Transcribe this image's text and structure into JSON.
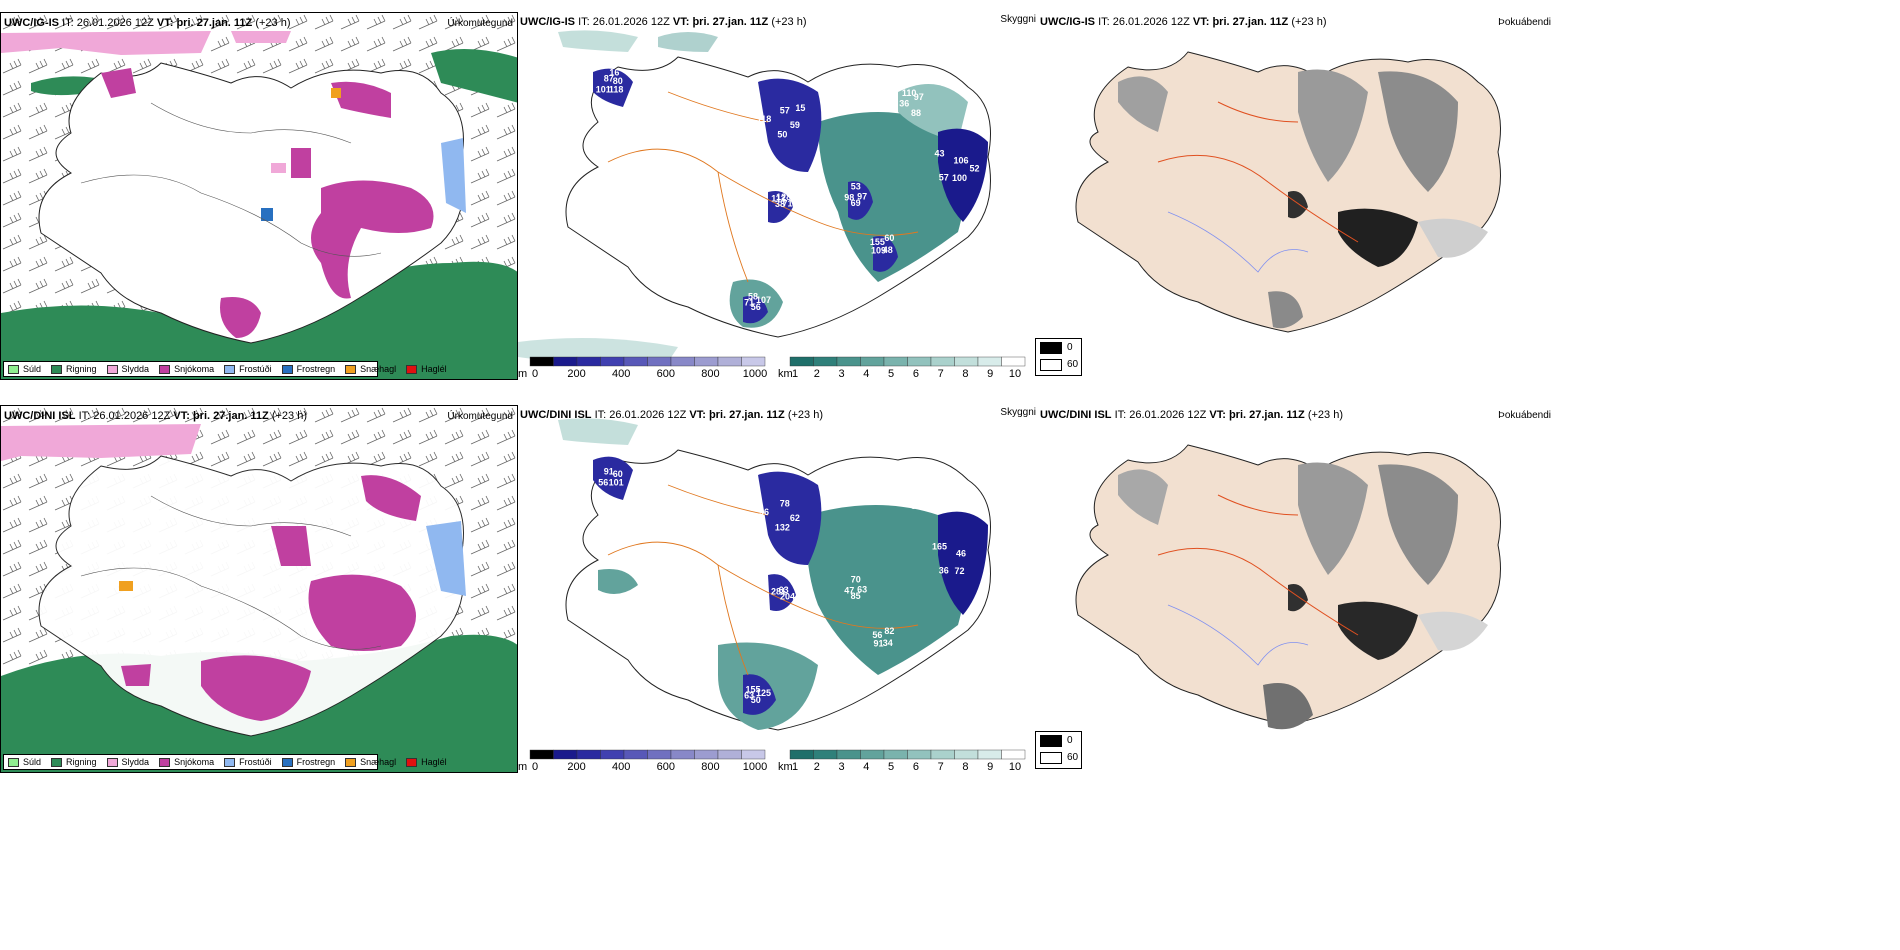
{
  "rows": [
    {
      "model": "UWC/IG-IS",
      "init_label": "IT:",
      "init_time": "26.01.2026 12Z",
      "valid_label": "VT:",
      "valid_time": "þri. 27.jan. 11Z",
      "lead": "(+23 h)",
      "panel_titles": {
        "precip": "Úrkomutegund",
        "vis": "Skyggni",
        "fog": "Þokuábendi"
      }
    },
    {
      "model": "UWC/DINI ISL",
      "init_label": "IT:",
      "init_time": "26.01.2026 12Z",
      "valid_label": "VT:",
      "valid_time": "þri. 27.jan. 11Z",
      "lead": "(+23 h)",
      "panel_titles": {
        "precip": "Úrkomutegund",
        "vis": "Skyggni",
        "fog": "Þokuábendi"
      }
    }
  ],
  "precip_legend": [
    {
      "label": "Súld",
      "color": "#90ee90"
    },
    {
      "label": "Rigning",
      "color": "#2e8b57"
    },
    {
      "label": "Slydda",
      "color": "#f0a8d8"
    },
    {
      "label": "Snjókoma",
      "color": "#c040a0"
    },
    {
      "label": "Frostúði",
      "color": "#90b8f0"
    },
    {
      "label": "Frostregn",
      "color": "#2870c0"
    },
    {
      "label": "Snæhagl",
      "color": "#f0a020"
    },
    {
      "label": "Haglél",
      "color": "#e01010"
    }
  ],
  "cloud_base_bar": {
    "unit": "m",
    "ticks": [
      "0",
      "200",
      "400",
      "600",
      "800",
      "1000"
    ],
    "colors": [
      "#000000",
      "#1a1a8c",
      "#2a2aa0",
      "#4040b0",
      "#5858b8",
      "#7070c0",
      "#8888c8",
      "#9c9cd0",
      "#b0b0d8",
      "#c8c8e8"
    ]
  },
  "visibility_bar": {
    "unit": "km",
    "ticks": [
      "1",
      "2",
      "3",
      "4",
      "5",
      "6",
      "7",
      "8",
      "9",
      "10"
    ],
    "colors": [
      "#1f6f6a",
      "#2f807a",
      "#4a938c",
      "#62a39c",
      "#7ab3ad",
      "#92c2bd",
      "#aad1cc",
      "#c2dfdb",
      "#d8ecea",
      "#ffffff"
    ]
  },
  "fog_legend": [
    {
      "label": "0",
      "color": "#000000"
    },
    {
      "label": "60",
      "color": "#ffffff"
    }
  ],
  "cloud_labels_top": [
    "80",
    "59",
    "100",
    "69",
    "109",
    "71",
    "112",
    "110",
    "118",
    "50",
    "57",
    "98",
    "155",
    "58",
    "128",
    "97",
    "101",
    "118",
    "43",
    "53",
    "60",
    "107",
    "71",
    "88",
    "87",
    "57",
    "106",
    "97",
    "48",
    "56",
    "38",
    "36",
    "16",
    "15",
    "52"
  ],
  "cloud_labels_bottom": [
    "60",
    "62",
    "72",
    "85",
    "91",
    "63",
    "281",
    "268",
    "101",
    "132",
    "36",
    "47",
    "56",
    "155",
    "63",
    "76",
    "56",
    "96",
    "165",
    "70",
    "82",
    "125",
    "204",
    "57",
    "91",
    "78",
    "46",
    "63",
    "34",
    "50"
  ]
}
